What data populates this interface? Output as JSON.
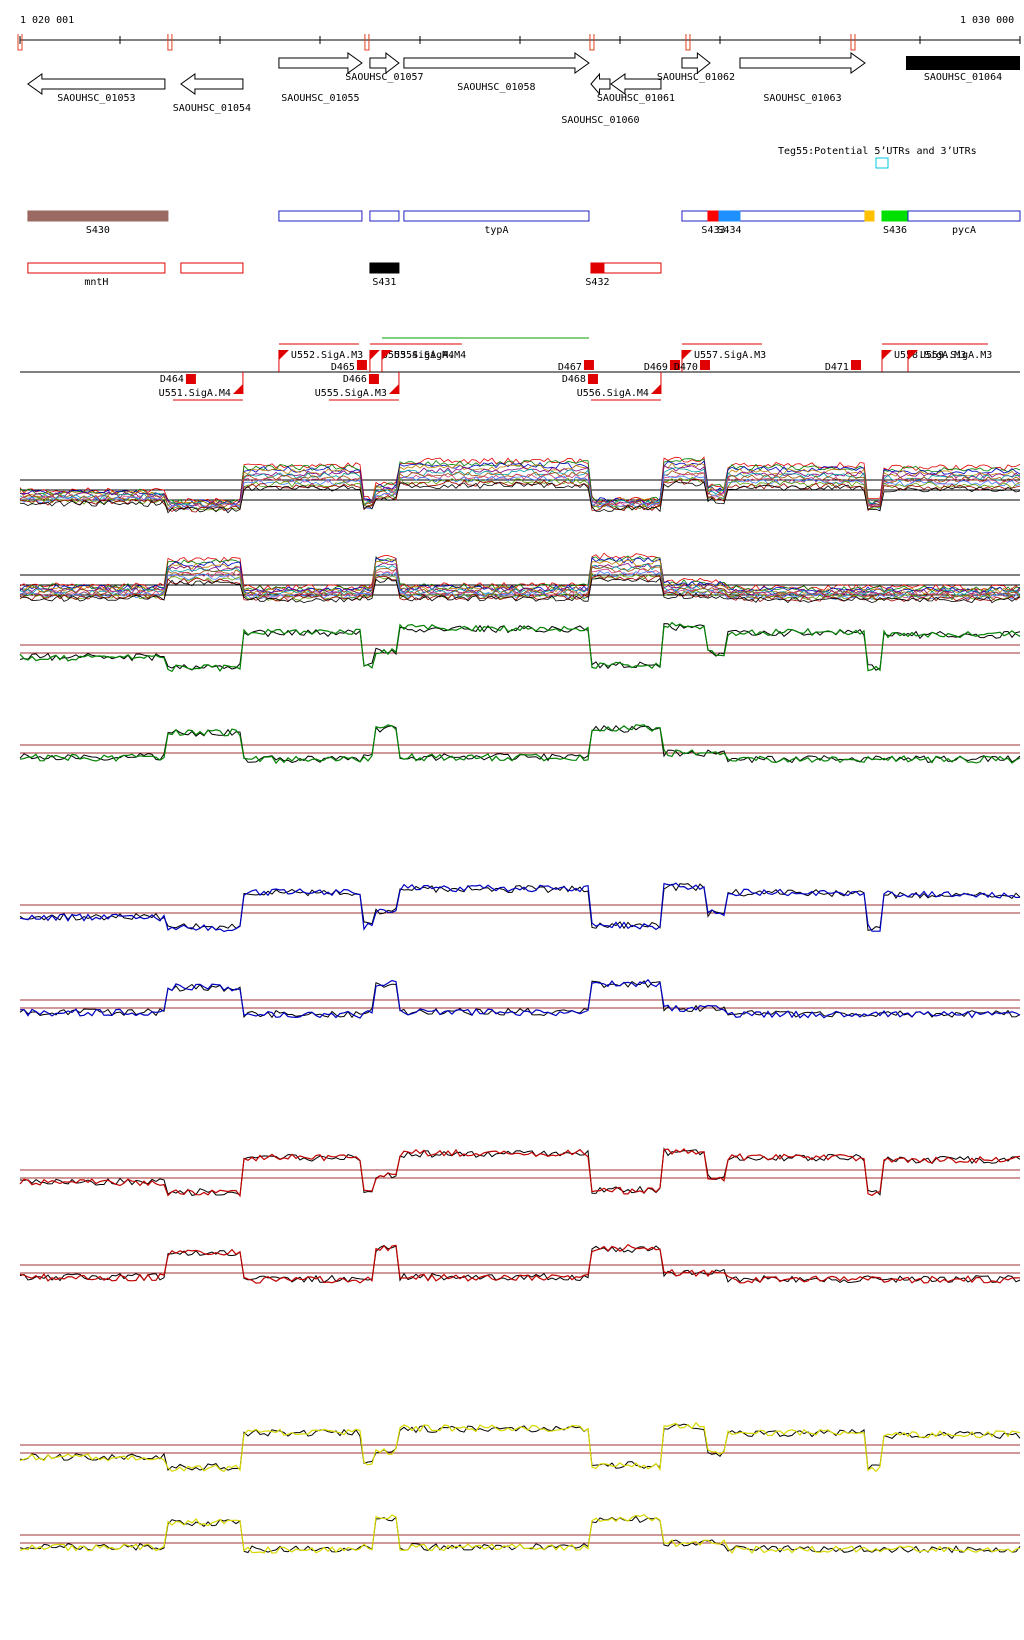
{
  "coords": {
    "start_label": "1 020 001",
    "end_label": "1 030 000",
    "start": 1020001,
    "end": 1030000
  },
  "genes": [
    {
      "name": "SAOUHSC_01053",
      "start": 1020080,
      "end": 1021450,
      "strand": "-",
      "lane": 1
    },
    {
      "name": "SAOUHSC_01054",
      "start": 1021610,
      "end": 1022230,
      "strand": "-",
      "lane": 1
    },
    {
      "name": "SAOUHSC_01055",
      "start": 1022590,
      "end": 1023420,
      "strand": "+",
      "lane": 0
    },
    {
      "name": "SAOUHSC_01057",
      "start": 1023500,
      "end": 1023790,
      "strand": "+",
      "lane": 0
    },
    {
      "name": "SAOUHSC_01058",
      "start": 1023840,
      "end": 1025690,
      "strand": "+",
      "lane": 0
    },
    {
      "name": "SAOUHSC_01060",
      "start": 1025710,
      "end": 1025900,
      "strand": "-",
      "lane": 1
    },
    {
      "name": "SAOUHSC_01061",
      "start": 1025910,
      "end": 1026410,
      "strand": "-",
      "lane": 1
    },
    {
      "name": "SAOUHSC_01062",
      "start": 1026620,
      "end": 1026900,
      "strand": "+",
      "lane": 0
    },
    {
      "name": "SAOUHSC_01063",
      "start": 1027200,
      "end": 1028450,
      "strand": "+",
      "lane": 0
    },
    {
      "name": "SAOUHSC_01064",
      "start": 1028860,
      "end": 1030000,
      "strand": "+",
      "lane": 0,
      "filled": true
    }
  ],
  "teg55_legend": "Teg55:Potential 5’UTRs and 3’UTRs",
  "features_row1": [
    {
      "name": "S430",
      "start": 1020080,
      "end": 1021480,
      "color": "#9a6a62",
      "filled": true
    },
    {
      "name": "",
      "start": 1022590,
      "end": 1023420,
      "color": "#2020c0",
      "filled": false
    },
    {
      "name": "",
      "start": 1023500,
      "end": 1023790,
      "color": "#2020c0",
      "filled": false
    },
    {
      "name": "typA",
      "start": 1023840,
      "end": 1025690,
      "color": "#2020c0",
      "filled": false
    },
    {
      "name": "",
      "start": 1026620,
      "end": 1028450,
      "color": "#2020c0",
      "filled": false
    },
    {
      "name": "S433",
      "start": 1026880,
      "end": 1026990,
      "color": "#ff0000",
      "filled": true
    },
    {
      "name": "S434",
      "start": 1026990,
      "end": 1027200,
      "color": "#1e90ff",
      "filled": true
    },
    {
      "name": "",
      "start": 1028450,
      "end": 1028540,
      "color": "#ffc000",
      "filled": true
    },
    {
      "name": "S436",
      "start": 1028620,
      "end": 1028880,
      "color": "#00e000",
      "filled": true
    },
    {
      "name": "pycA",
      "start": 1028880,
      "end": 1030000,
      "color": "#2020c0",
      "filled": false
    }
  ],
  "features_row2": [
    {
      "name": "mntH",
      "start": 1020080,
      "end": 1021450,
      "color": "#e00000",
      "filled": false
    },
    {
      "name": "",
      "start": 1021610,
      "end": 1022230,
      "color": "#e00000",
      "filled": false
    },
    {
      "name": "S431",
      "start": 1023500,
      "end": 1023790,
      "color": "#000000",
      "filled": true
    },
    {
      "name": "S432",
      "start": 1025710,
      "end": 1025840,
      "color": "#e00000",
      "filled": true
    },
    {
      "name": "",
      "start": 1025840,
      "end": 1026410,
      "color": "#e00000",
      "filled": false
    }
  ],
  "promoters": [
    {
      "name": "U552.SigA.M3",
      "pos": 1022590,
      "strand": "+"
    },
    {
      "name": "U553.SigA.M4",
      "pos": 1023500,
      "strand": "+"
    },
    {
      "name": "U554.SigA.M4",
      "pos": 1023620,
      "strand": "+"
    },
    {
      "name": "U557.SigA.M3",
      "pos": 1026620,
      "strand": "+"
    },
    {
      "name": "U558.SigA.M3",
      "pos": 1028620,
      "strand": "+"
    },
    {
      "name": "U559.SigA.M3",
      "pos": 1028880,
      "strand": "+"
    },
    {
      "name": "U551.SigA.M4",
      "pos": 1022230,
      "strand": "-"
    },
    {
      "name": "U555.SigA.M3",
      "pos": 1023790,
      "strand": "-"
    },
    {
      "name": "U556.SigA.M4",
      "pos": 1026410,
      "strand": "-"
    }
  ],
  "terminators": [
    {
      "name": "D464",
      "pos": 1021710,
      "strand": "-"
    },
    {
      "name": "D465",
      "pos": 1023420,
      "strand": "+"
    },
    {
      "name": "D466",
      "pos": 1023540,
      "strand": "-"
    },
    {
      "name": "D467",
      "pos": 1025690,
      "strand": "+"
    },
    {
      "name": "D468",
      "pos": 1025730,
      "strand": "-"
    },
    {
      "name": "D469",
      "pos": 1026550,
      "strand": "+"
    },
    {
      "name": "D470",
      "pos": 1026850,
      "strand": "+"
    },
    {
      "name": "D471",
      "pos": 1028360,
      "strand": "+"
    }
  ],
  "expression_blocks": [
    {
      "start": 1020001,
      "end": 1021480,
      "plus": 0.25,
      "minus": 0.25
    },
    {
      "start": 1021480,
      "end": 1022230,
      "plus": 0.0,
      "minus": 0.85
    },
    {
      "start": 1022230,
      "end": 1023420,
      "plus": 0.85,
      "minus": 0.2
    },
    {
      "start": 1023420,
      "end": 1023560,
      "plus": 0.05,
      "minus": 0.25
    },
    {
      "start": 1023560,
      "end": 1023790,
      "plus": 0.4,
      "minus": 0.95
    },
    {
      "start": 1023790,
      "end": 1025690,
      "plus": 0.95,
      "minus": 0.25
    },
    {
      "start": 1025690,
      "end": 1026410,
      "plus": 0.05,
      "minus": 0.95
    },
    {
      "start": 1026410,
      "end": 1026850,
      "plus": 1.0,
      "minus": 0.35
    },
    {
      "start": 1026850,
      "end": 1027070,
      "plus": 0.35,
      "minus": 0.35
    },
    {
      "start": 1027070,
      "end": 1028450,
      "plus": 0.85,
      "minus": 0.2
    },
    {
      "start": 1028450,
      "end": 1028620,
      "plus": 0.0,
      "minus": 0.2
    },
    {
      "start": 1028620,
      "end": 1030000,
      "plus": 0.8,
      "minus": 0.2
    }
  ],
  "track_colors": [
    "#008000",
    "#0000c0",
    "#c00000",
    "#d8d800"
  ]
}
